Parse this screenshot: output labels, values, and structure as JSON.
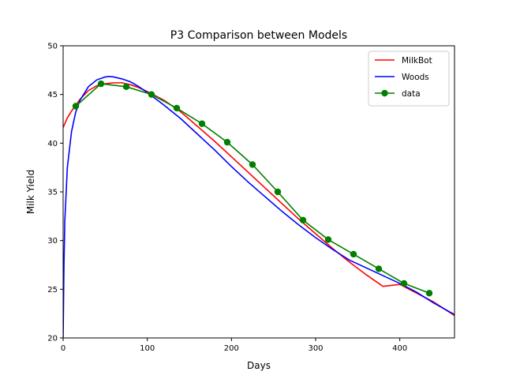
{
  "chart_data": {
    "type": "line",
    "title": "P3 Comparison between Models",
    "xlabel": "Days",
    "ylabel": "Milk Yield",
    "xlim": [
      0,
      465
    ],
    "ylim": [
      20,
      50
    ],
    "xticks": [
      0,
      100,
      200,
      300,
      400
    ],
    "yticks": [
      20,
      25,
      30,
      35,
      40,
      45,
      50
    ],
    "grid": false,
    "legend_position": "top-right",
    "series": [
      {
        "name": "MilkBot",
        "color": "#ff0000",
        "style": "line",
        "x": [
          0,
          5,
          10,
          20,
          30,
          40,
          50,
          60,
          70,
          80,
          90,
          100,
          120,
          140,
          160,
          180,
          200,
          220,
          240,
          260,
          280,
          300,
          320,
          340,
          360,
          380,
          400,
          420,
          440,
          465
        ],
        "y": [
          41.6,
          42.6,
          43.3,
          44.5,
          45.4,
          45.9,
          46.1,
          46.2,
          46.2,
          46.0,
          45.7,
          45.3,
          44.4,
          43.2,
          41.7,
          40.2,
          38.6,
          37.0,
          35.4,
          33.8,
          32.2,
          30.7,
          29.2,
          27.8,
          26.5,
          25.3,
          25.5,
          24.6,
          23.7,
          22.3
        ]
      },
      {
        "name": "Woods",
        "color": "#0000ff",
        "style": "line",
        "x": [
          0,
          1,
          2,
          5,
          10,
          15,
          20,
          30,
          40,
          50,
          55,
          60,
          70,
          80,
          90,
          100,
          120,
          140,
          160,
          180,
          200,
          220,
          240,
          260,
          280,
          300,
          320,
          340,
          360,
          380,
          400,
          420,
          440,
          465
        ],
        "y": [
          20.0,
          27.5,
          32.0,
          37.5,
          41.2,
          43.2,
          44.4,
          45.8,
          46.5,
          46.8,
          46.85,
          46.8,
          46.6,
          46.3,
          45.8,
          45.2,
          43.9,
          42.5,
          40.9,
          39.3,
          37.6,
          36.0,
          34.5,
          33.0,
          31.6,
          30.3,
          29.1,
          28.0,
          27.2,
          26.4,
          25.6,
          24.7,
          23.6,
          22.4
        ]
      },
      {
        "name": "data",
        "color": "#008000",
        "style": "line-marker",
        "x": [
          15,
          45,
          75,
          105,
          135,
          165,
          195,
          225,
          255,
          285,
          315,
          345,
          375,
          405,
          435
        ],
        "y": [
          43.8,
          46.1,
          45.8,
          45.0,
          43.6,
          42.0,
          40.1,
          37.8,
          35.0,
          32.1,
          30.1,
          28.6,
          27.1,
          25.6,
          24.6
        ]
      }
    ]
  }
}
